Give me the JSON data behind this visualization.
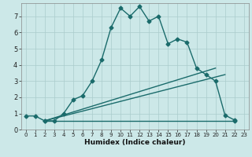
{
  "xlabel": "Humidex (Indice chaleur)",
  "bg_color": "#cce8e8",
  "grid_color": "#aacccc",
  "line_color": "#1a6b6b",
  "line1_x": [
    0,
    1,
    2,
    3,
    4,
    5,
    6,
    7,
    8,
    9,
    10,
    11,
    12,
    13,
    14,
    15,
    16,
    17,
    18,
    19,
    20,
    21,
    22
  ],
  "line1_y": [
    0.85,
    0.85,
    0.55,
    0.55,
    1.0,
    1.85,
    2.1,
    3.0,
    4.3,
    6.3,
    7.5,
    7.0,
    7.6,
    6.7,
    7.0,
    5.3,
    5.6,
    5.4,
    3.8,
    3.4,
    3.0,
    0.9,
    0.6
  ],
  "line3_x": [
    2,
    22
  ],
  "line3_y": [
    0.55,
    0.55
  ],
  "line4_x": [
    2,
    20
  ],
  "line4_y": [
    0.55,
    3.8
  ],
  "line5_x": [
    2,
    21
  ],
  "line5_y": [
    0.55,
    3.4
  ],
  "xlim": [
    -0.5,
    23.5
  ],
  "ylim": [
    0,
    7.8
  ],
  "yticks": [
    0,
    1,
    2,
    3,
    4,
    5,
    6,
    7
  ],
  "xticks": [
    0,
    1,
    2,
    3,
    4,
    5,
    6,
    7,
    8,
    9,
    10,
    11,
    12,
    13,
    14,
    15,
    16,
    17,
    18,
    19,
    20,
    21,
    22,
    23
  ]
}
